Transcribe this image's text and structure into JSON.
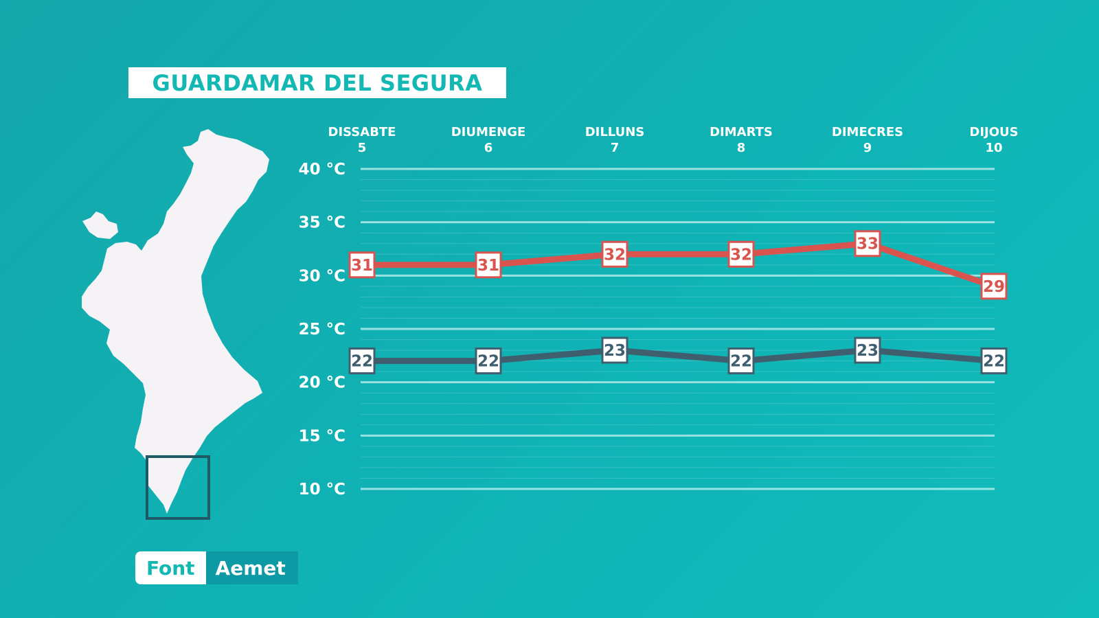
{
  "title": "GUARDAMAR DEL SEGURA",
  "source": {
    "label": "Font",
    "value": "Aemet"
  },
  "colors": {
    "background": "#12b2b4",
    "max_line": "#d9534f",
    "min_line": "#3f5f6e",
    "grid": "#bdeeed",
    "map": "#f5f3f6",
    "highlight_box": "#1e5a66"
  },
  "map": {
    "icon": "valencian-community-map-icon"
  },
  "chart_data": {
    "type": "line",
    "days": [
      {
        "name": "DISSABTE",
        "num": "5"
      },
      {
        "name": "DIUMENGE",
        "num": "6"
      },
      {
        "name": "DILLUNS",
        "num": "7"
      },
      {
        "name": "DIMARTS",
        "num": "8"
      },
      {
        "name": "DIMECRES",
        "num": "9"
      },
      {
        "name": "DIJOUS",
        "num": "10"
      }
    ],
    "y_ticks": [
      {
        "value": 40,
        "label": "40 °C"
      },
      {
        "value": 35,
        "label": "35 °C"
      },
      {
        "value": 30,
        "label": "30 °C"
      },
      {
        "value": 25,
        "label": "25 °C"
      },
      {
        "value": 20,
        "label": "20 °C"
      },
      {
        "value": 15,
        "label": "15 °C"
      },
      {
        "value": 10,
        "label": "10 °C"
      }
    ],
    "ylim": [
      10,
      40
    ],
    "grid": true,
    "series": [
      {
        "key": "max",
        "values": [
          31,
          31,
          32,
          32,
          33,
          29
        ]
      },
      {
        "key": "min",
        "values": [
          22,
          22,
          23,
          22,
          23,
          22
        ]
      }
    ]
  }
}
